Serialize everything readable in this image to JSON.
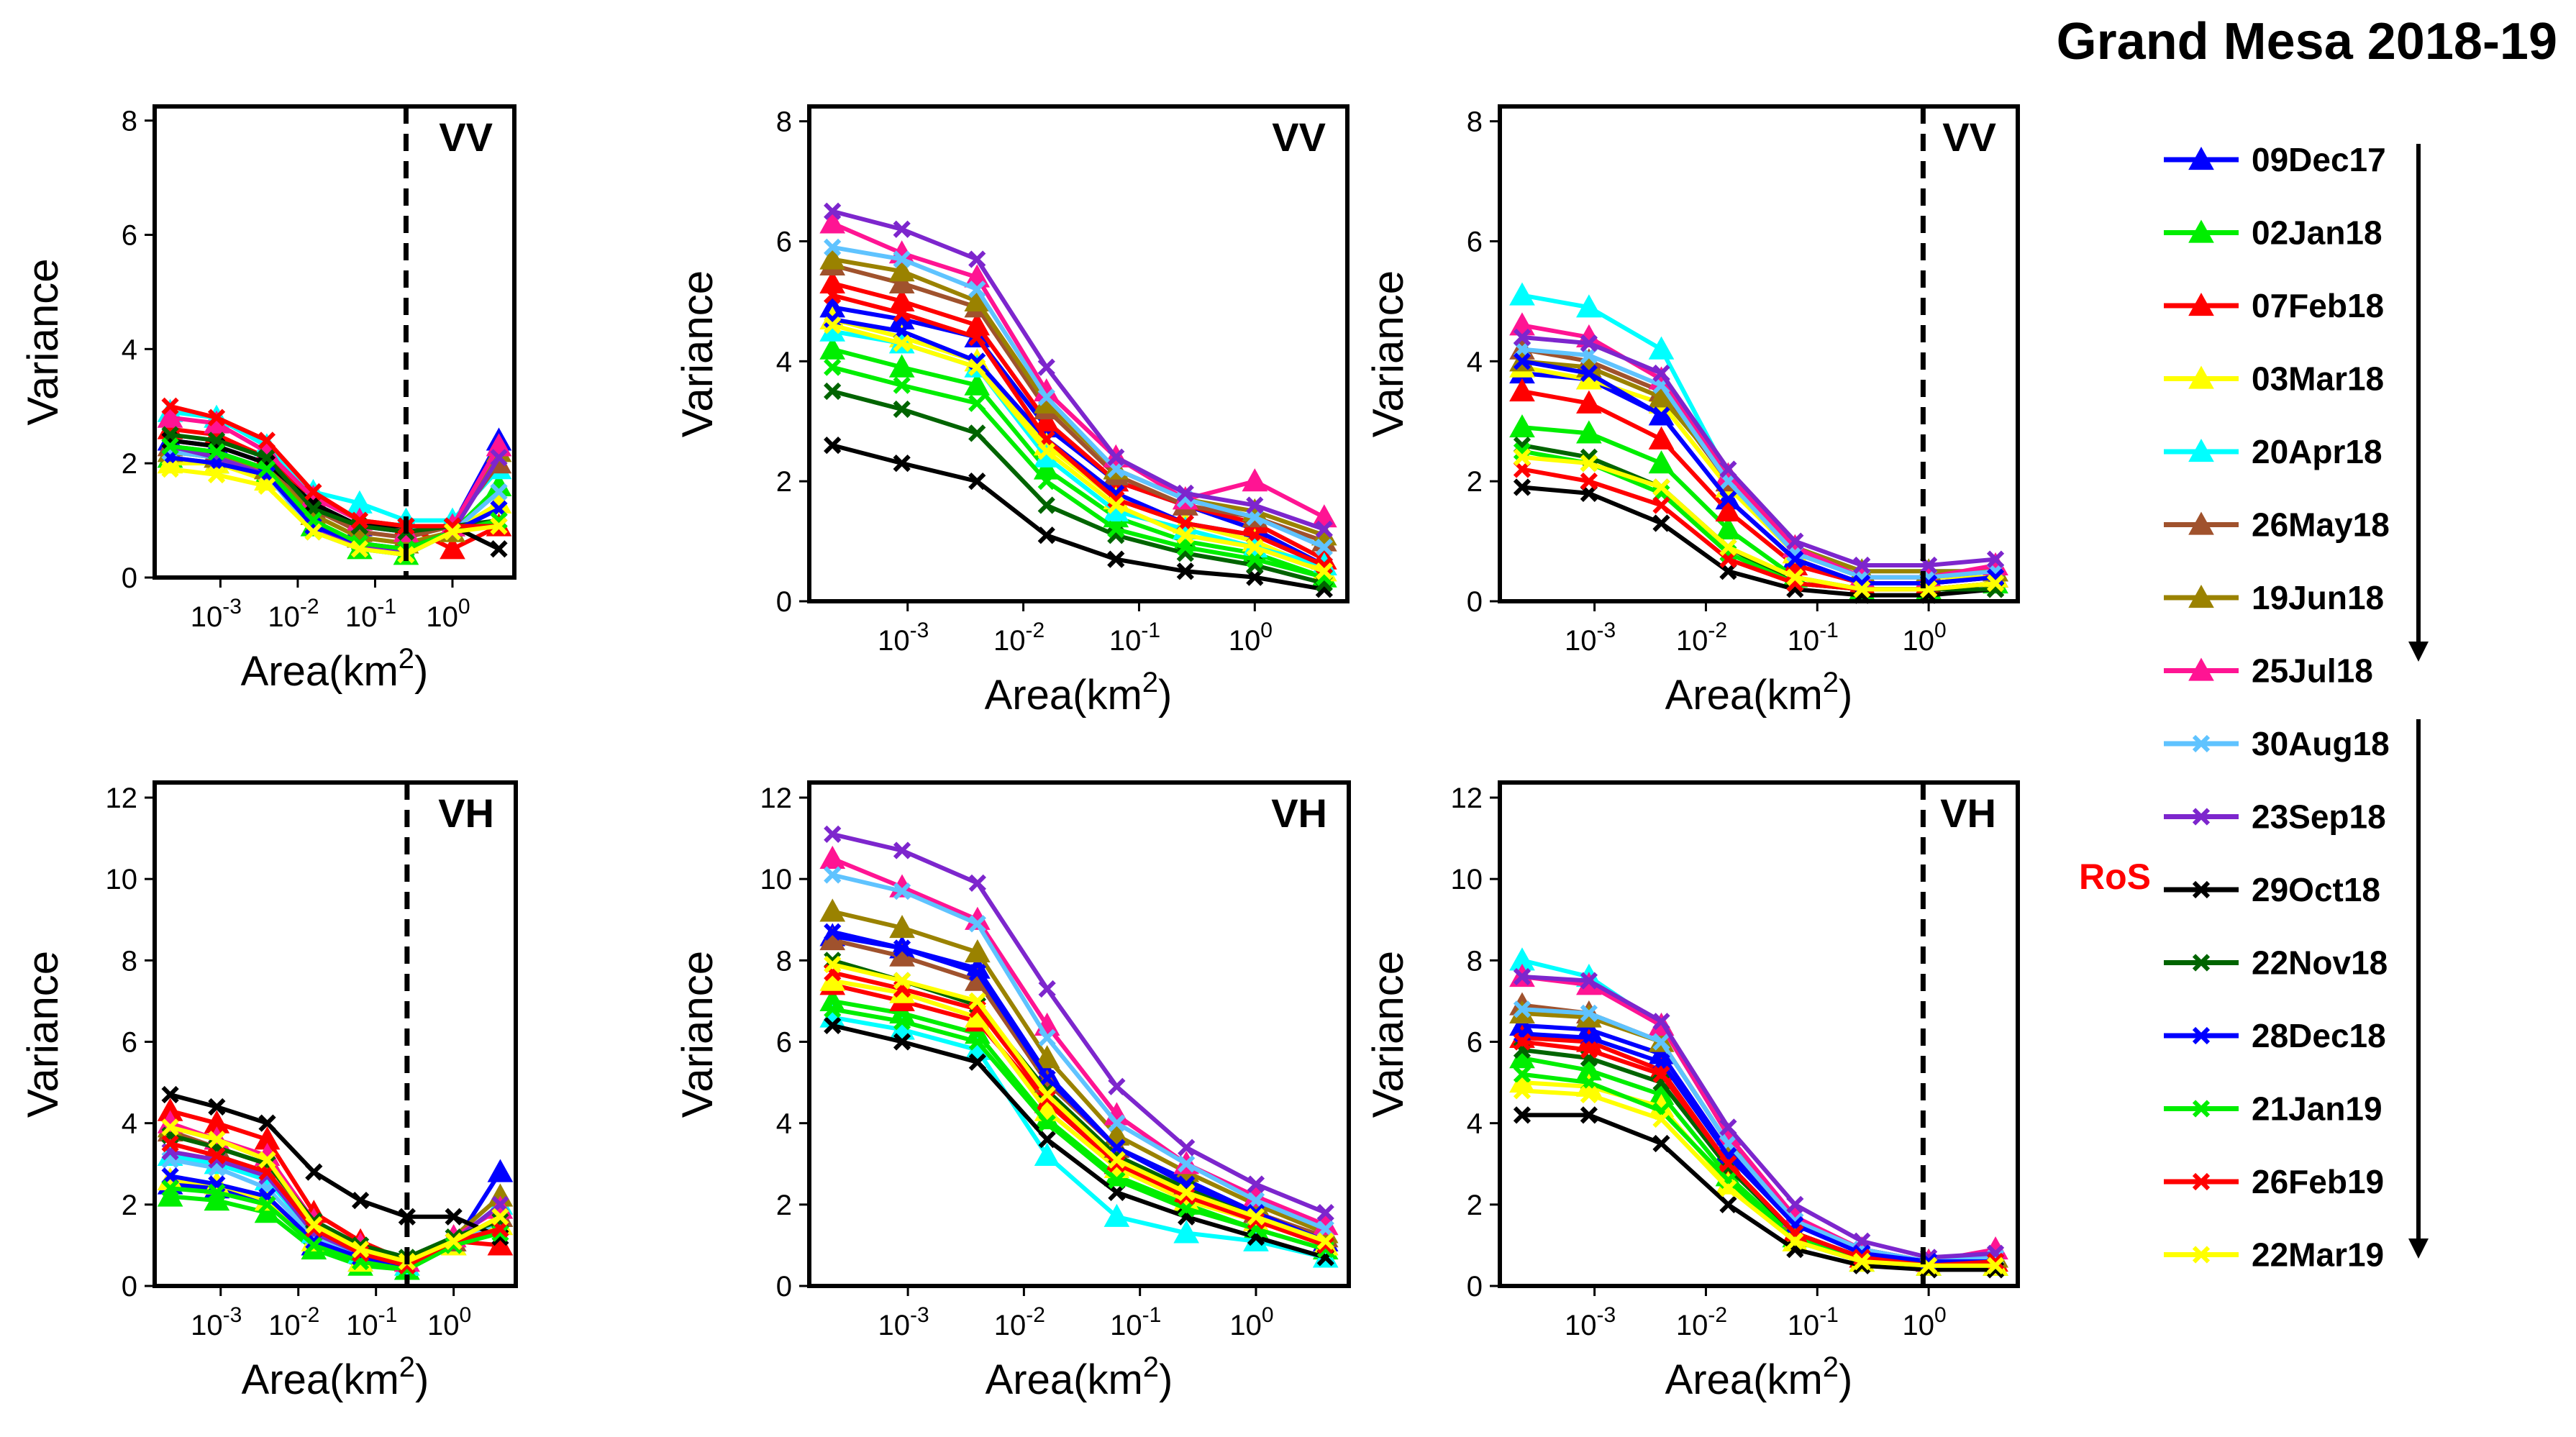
{
  "figure_title": "Grand Mesa 2018-19",
  "ros_label": "RoS",
  "chart_data": {
    "type": "line",
    "x_log10": [
      -3.65,
      -3.05,
      -2.4,
      -1.8,
      -1.2,
      -0.6,
      0.0,
      0.6
    ],
    "xlabel": "Area(km²)",
    "ylabel": "Variance",
    "x_tick_exponents": [
      "-3",
      "-2",
      "-1",
      "0"
    ],
    "x_tick_base": "10",
    "series": [
      {
        "name": "09Dec17",
        "color": "#0000ff",
        "marker": "triangle"
      },
      {
        "name": "02Jan18",
        "color": "#00ee00",
        "marker": "triangle"
      },
      {
        "name": "07Feb18",
        "color": "#ff0000",
        "marker": "triangle"
      },
      {
        "name": "03Mar18",
        "color": "#ffff00",
        "marker": "triangle"
      },
      {
        "name": "20Apr18",
        "color": "#00ffff",
        "marker": "triangle"
      },
      {
        "name": "26May18",
        "color": "#a0522d",
        "marker": "triangle"
      },
      {
        "name": "19Jun18",
        "color": "#9a8200",
        "marker": "triangle"
      },
      {
        "name": "25Jul18",
        "color": "#ff1493",
        "marker": "triangle"
      },
      {
        "name": "30Aug18",
        "color": "#5fc3ff",
        "marker": "x"
      },
      {
        "name": "23Sep18",
        "color": "#7d26cd",
        "marker": "x"
      },
      {
        "name": "29Oct18",
        "color": "#000000",
        "marker": "x"
      },
      {
        "name": "22Nov18",
        "color": "#006400",
        "marker": "x"
      },
      {
        "name": "28Dec18",
        "color": "#0000ff",
        "marker": "x"
      },
      {
        "name": "21Jan19",
        "color": "#00ee00",
        "marker": "x"
      },
      {
        "name": "26Feb19",
        "color": "#ff0000",
        "marker": "x"
      },
      {
        "name": "22Mar19",
        "color": "#ffff00",
        "marker": "x"
      }
    ],
    "panels": [
      {
        "label": "VV",
        "ylim": [
          0,
          8
        ],
        "yticks": [
          0,
          2,
          4,
          6,
          8
        ],
        "dashed_x_log10": -0.6,
        "values": [
          [
            2.4,
            2.3,
            2.0,
            1.3,
            0.9,
            0.8,
            0.9,
            2.4
          ],
          [
            2.1,
            2.0,
            1.8,
            0.9,
            0.5,
            0.4,
            0.8,
            1.6
          ],
          [
            2.6,
            2.5,
            2.1,
            1.4,
            1.0,
            0.9,
            0.5,
            0.9
          ],
          [
            2.0,
            2.0,
            1.7,
            1.1,
            0.7,
            0.6,
            0.8,
            1.3
          ],
          [
            2.9,
            2.8,
            2.3,
            1.5,
            1.3,
            1.0,
            1.0,
            1.9
          ],
          [
            2.3,
            2.2,
            1.9,
            1.2,
            0.8,
            0.7,
            0.9,
            2.0
          ],
          [
            2.2,
            2.1,
            1.9,
            1.1,
            0.7,
            0.6,
            0.8,
            2.2
          ],
          [
            2.8,
            2.7,
            2.2,
            1.4,
            1.0,
            0.8,
            0.9,
            2.3
          ],
          [
            2.2,
            2.1,
            1.8,
            0.8,
            0.5,
            0.4,
            0.8,
            1.5
          ],
          [
            2.3,
            2.1,
            1.8,
            0.9,
            0.5,
            0.5,
            0.8,
            2.1
          ],
          [
            2.4,
            2.3,
            2.0,
            1.3,
            0.9,
            0.9,
            0.9,
            0.5
          ],
          [
            2.5,
            2.4,
            2.1,
            1.2,
            0.9,
            0.8,
            0.9,
            1.0
          ],
          [
            2.1,
            2.0,
            1.8,
            0.9,
            0.6,
            0.5,
            0.8,
            1.2
          ],
          [
            2.3,
            2.2,
            1.9,
            1.0,
            0.6,
            0.5,
            0.8,
            1.0
          ],
          [
            3.0,
            2.8,
            2.4,
            1.5,
            1.0,
            0.9,
            0.9,
            0.9
          ],
          [
            1.9,
            1.8,
            1.6,
            0.8,
            0.5,
            0.4,
            0.8,
            0.9
          ]
        ]
      },
      {
        "label": "VV",
        "ylim": [
          0,
          8
        ],
        "yticks": [
          0,
          2,
          4,
          6,
          8
        ],
        "dashed_x_log10": null,
        "values": [
          [
            4.9,
            4.7,
            4.4,
            2.9,
            2.0,
            1.6,
            1.2,
            0.6
          ],
          [
            4.2,
            3.9,
            3.6,
            2.2,
            1.4,
            1.0,
            0.8,
            0.4
          ],
          [
            5.3,
            5.0,
            4.6,
            3.0,
            2.0,
            1.6,
            1.3,
            0.7
          ],
          [
            4.7,
            4.4,
            4.0,
            2.6,
            1.7,
            1.3,
            1.0,
            0.5
          ],
          [
            4.5,
            4.3,
            3.9,
            2.4,
            1.5,
            1.2,
            0.9,
            0.6
          ],
          [
            5.6,
            5.3,
            4.9,
            3.2,
            2.1,
            1.6,
            1.4,
            1.0
          ],
          [
            5.7,
            5.5,
            5.0,
            3.3,
            2.2,
            1.7,
            1.5,
            1.1
          ],
          [
            6.3,
            5.8,
            5.4,
            3.5,
            2.4,
            1.7,
            2.0,
            1.4
          ],
          [
            5.9,
            5.7,
            5.2,
            3.4,
            2.2,
            1.7,
            1.4,
            0.9
          ],
          [
            6.5,
            6.2,
            5.7,
            3.9,
            2.4,
            1.8,
            1.6,
            1.2
          ],
          [
            2.6,
            2.3,
            2.0,
            1.1,
            0.7,
            0.5,
            0.4,
            0.2
          ],
          [
            3.5,
            3.2,
            2.8,
            1.6,
            1.1,
            0.8,
            0.6,
            0.3
          ],
          [
            4.7,
            4.5,
            4.0,
            2.7,
            1.8,
            1.3,
            1.1,
            0.6
          ],
          [
            3.9,
            3.6,
            3.3,
            2.0,
            1.2,
            0.9,
            0.7,
            0.4
          ],
          [
            5.1,
            4.8,
            4.4,
            2.7,
            1.7,
            1.3,
            1.1,
            0.6
          ],
          [
            4.6,
            4.3,
            3.9,
            2.5,
            1.6,
            1.1,
            0.9,
            0.5
          ]
        ]
      },
      {
        "label": "VV",
        "ylim": [
          0,
          8
        ],
        "yticks": [
          0,
          2,
          4,
          6,
          8
        ],
        "dashed_x_log10": -0.05,
        "values": [
          [
            3.8,
            3.7,
            3.1,
            1.7,
            0.7,
            0.3,
            0.3,
            0.4
          ],
          [
            2.9,
            2.8,
            2.3,
            1.2,
            0.4,
            0.2,
            0.2,
            0.3
          ],
          [
            3.5,
            3.3,
            2.7,
            1.5,
            0.6,
            0.3,
            0.3,
            0.4
          ],
          [
            3.9,
            3.7,
            3.3,
            1.9,
            0.8,
            0.4,
            0.4,
            0.4
          ],
          [
            5.1,
            4.9,
            4.2,
            2.1,
            0.9,
            0.5,
            0.5,
            0.5
          ],
          [
            4.2,
            4.0,
            3.5,
            2.0,
            0.9,
            0.4,
            0.4,
            0.5
          ],
          [
            4.0,
            3.9,
            3.4,
            2.1,
            0.9,
            0.5,
            0.5,
            0.5
          ],
          [
            4.6,
            4.4,
            3.7,
            2.1,
            0.9,
            0.4,
            0.4,
            0.6
          ],
          [
            4.2,
            4.1,
            3.6,
            2.0,
            0.8,
            0.4,
            0.4,
            0.5
          ],
          [
            4.4,
            4.3,
            3.8,
            2.2,
            1.0,
            0.6,
            0.6,
            0.7
          ],
          [
            1.9,
            1.8,
            1.3,
            0.5,
            0.2,
            0.1,
            0.1,
            0.2
          ],
          [
            2.6,
            2.4,
            1.9,
            0.9,
            0.3,
            0.2,
            0.2,
            0.2
          ],
          [
            4.0,
            3.8,
            3.1,
            1.7,
            0.7,
            0.3,
            0.3,
            0.4
          ],
          [
            2.5,
            2.3,
            1.8,
            0.8,
            0.3,
            0.2,
            0.2,
            0.3
          ],
          [
            2.2,
            2.0,
            1.6,
            0.7,
            0.3,
            0.2,
            0.2,
            0.3
          ],
          [
            2.4,
            2.3,
            1.9,
            0.9,
            0.4,
            0.2,
            0.2,
            0.3
          ]
        ]
      },
      {
        "label": "VH",
        "ylim": [
          0,
          12
        ],
        "yticks": [
          0,
          2,
          4,
          6,
          8,
          10,
          12
        ],
        "dashed_x_log10": -0.6,
        "values": [
          [
            2.5,
            2.4,
            2.1,
            1.0,
            0.6,
            0.4,
            1.0,
            2.8
          ],
          [
            2.2,
            2.1,
            1.8,
            0.9,
            0.5,
            0.4,
            1.0,
            1.7
          ],
          [
            4.3,
            4.0,
            3.6,
            1.8,
            1.1,
            0.6,
            1.1,
            1.0
          ],
          [
            2.6,
            2.5,
            2.1,
            1.1,
            0.6,
            0.5,
            1.0,
            1.5
          ],
          [
            3.2,
            3.0,
            2.6,
            1.3,
            0.8,
            0.5,
            1.1,
            2.0
          ],
          [
            3.8,
            3.4,
            3.0,
            1.5,
            0.9,
            0.6,
            1.1,
            1.7
          ],
          [
            3.9,
            3.6,
            3.1,
            1.6,
            1.0,
            0.6,
            1.2,
            2.2
          ],
          [
            4.0,
            3.6,
            3.2,
            1.6,
            1.0,
            0.6,
            1.2,
            1.9
          ],
          [
            3.1,
            2.9,
            2.4,
            1.2,
            0.7,
            0.5,
            1.0,
            1.6
          ],
          [
            3.3,
            3.1,
            2.7,
            1.3,
            0.8,
            0.5,
            1.1,
            2.0
          ],
          [
            4.7,
            4.4,
            4.0,
            2.8,
            2.1,
            1.7,
            1.7,
            1.2
          ],
          [
            3.7,
            3.4,
            3.0,
            1.6,
            1.0,
            0.7,
            1.2,
            1.6
          ],
          [
            2.7,
            2.5,
            2.2,
            1.1,
            0.7,
            0.5,
            1.0,
            1.4
          ],
          [
            2.4,
            2.3,
            2.0,
            1.0,
            0.6,
            0.4,
            1.0,
            1.3
          ],
          [
            3.5,
            3.2,
            2.8,
            1.4,
            0.8,
            0.5,
            1.1,
            1.4
          ],
          [
            3.9,
            3.6,
            3.1,
            1.5,
            0.9,
            0.6,
            1.1,
            1.7
          ]
        ]
      },
      {
        "label": "VH",
        "ylim": [
          0,
          12
        ],
        "yticks": [
          0,
          2,
          4,
          6,
          8,
          10,
          12
        ],
        "dashed_x_log10": null,
        "values": [
          [
            8.6,
            8.3,
            7.8,
            5.2,
            3.4,
            2.6,
            1.8,
            1.1
          ],
          [
            7.0,
            6.7,
            6.2,
            4.1,
            2.7,
            2.0,
            1.4,
            0.9
          ],
          [
            7.4,
            7.0,
            6.5,
            4.5,
            3.0,
            2.3,
            1.6,
            1.0
          ],
          [
            7.5,
            7.2,
            6.6,
            4.3,
            2.9,
            2.1,
            1.6,
            1.0
          ],
          [
            6.6,
            6.3,
            5.8,
            3.2,
            1.7,
            1.3,
            1.1,
            0.7
          ],
          [
            8.5,
            8.1,
            7.5,
            5.0,
            3.4,
            2.5,
            1.8,
            1.2
          ],
          [
            9.2,
            8.8,
            8.2,
            5.6,
            3.7,
            2.8,
            2.0,
            1.3
          ],
          [
            10.5,
            9.8,
            9.0,
            6.4,
            4.2,
            3.0,
            2.2,
            1.5
          ],
          [
            10.1,
            9.7,
            8.9,
            6.1,
            4.0,
            3.0,
            2.1,
            1.4
          ],
          [
            11.1,
            10.7,
            9.9,
            7.3,
            4.9,
            3.4,
            2.5,
            1.8
          ],
          [
            6.4,
            6.0,
            5.5,
            3.6,
            2.3,
            1.7,
            1.2,
            0.7
          ],
          [
            8.0,
            7.5,
            6.9,
            4.8,
            3.2,
            2.4,
            1.7,
            1.0
          ],
          [
            8.7,
            8.3,
            7.7,
            5.1,
            3.4,
            2.5,
            1.8,
            1.1
          ],
          [
            6.8,
            6.5,
            6.0,
            4.0,
            2.6,
            1.9,
            1.4,
            0.9
          ],
          [
            7.7,
            7.3,
            6.8,
            4.6,
            3.0,
            2.2,
            1.6,
            1.0
          ],
          [
            7.9,
            7.5,
            7.0,
            4.7,
            3.1,
            2.3,
            1.7,
            1.1
          ]
        ]
      },
      {
        "label": "VH",
        "ylim": [
          0,
          12
        ],
        "yticks": [
          0,
          2,
          4,
          6,
          8,
          10,
          12
        ],
        "dashed_x_log10": -0.05,
        "values": [
          [
            6.4,
            6.3,
            5.7,
            3.3,
            1.6,
            0.9,
            0.6,
            0.7
          ],
          [
            5.6,
            5.3,
            4.7,
            2.7,
            1.2,
            0.6,
            0.5,
            0.5
          ],
          [
            6.1,
            6.0,
            5.3,
            3.0,
            1.3,
            0.7,
            0.6,
            0.6
          ],
          [
            5.0,
            4.9,
            4.4,
            2.5,
            1.1,
            0.6,
            0.5,
            0.5
          ],
          [
            8.0,
            7.6,
            6.4,
            3.7,
            1.6,
            0.8,
            0.6,
            0.7
          ],
          [
            6.9,
            6.7,
            6.0,
            3.5,
            1.6,
            0.8,
            0.6,
            0.7
          ],
          [
            6.7,
            6.6,
            6.0,
            3.5,
            1.6,
            0.9,
            0.6,
            0.7
          ],
          [
            7.6,
            7.4,
            6.4,
            3.7,
            1.7,
            0.9,
            0.6,
            0.9
          ],
          [
            6.8,
            6.7,
            6.0,
            3.5,
            1.6,
            0.9,
            0.6,
            0.7
          ],
          [
            7.6,
            7.5,
            6.5,
            3.9,
            2.0,
            1.1,
            0.7,
            0.8
          ],
          [
            4.2,
            4.2,
            3.5,
            2.0,
            0.9,
            0.5,
            0.4,
            0.4
          ],
          [
            5.8,
            5.6,
            5.0,
            2.9,
            1.3,
            0.7,
            0.5,
            0.5
          ],
          [
            6.2,
            6.1,
            5.5,
            3.2,
            1.5,
            0.8,
            0.6,
            0.6
          ],
          [
            5.2,
            5.0,
            4.3,
            2.6,
            1.1,
            0.6,
            0.5,
            0.5
          ],
          [
            6.0,
            5.8,
            5.2,
            3.0,
            1.3,
            0.7,
            0.5,
            0.6
          ],
          [
            4.8,
            4.7,
            4.1,
            2.4,
            1.1,
            0.6,
            0.5,
            0.5
          ]
        ]
      }
    ]
  }
}
